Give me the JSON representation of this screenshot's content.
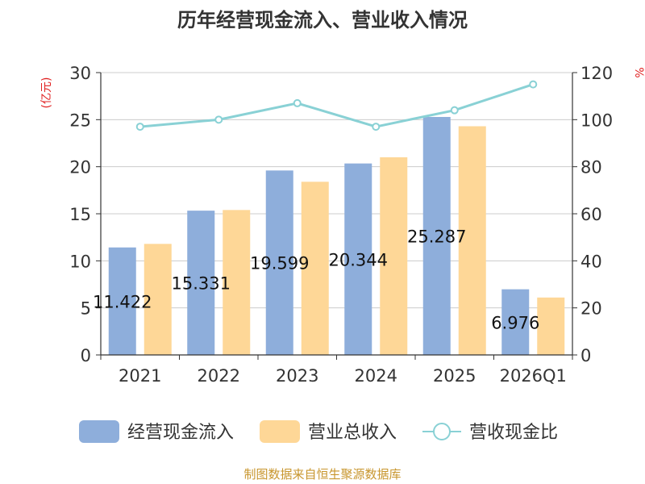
{
  "chart_data": {
    "type": "bar",
    "title": "历年经营现金流入、营业收入情况",
    "y_left_label": "(亿元)",
    "y_right_label": "%",
    "categories": [
      "2021",
      "2022",
      "2023",
      "2024",
      "2025",
      "2026Q1"
    ],
    "y_left_ticks": [
      0,
      5,
      10,
      15,
      20,
      25,
      30
    ],
    "y_right_ticks": [
      0,
      20,
      40,
      60,
      80,
      100,
      120
    ],
    "ylim_left": [
      0,
      30
    ],
    "ylim_right": [
      0,
      120
    ],
    "series": [
      {
        "name": "经营现金流入",
        "type": "bar",
        "axis": "left",
        "color": "#8eaedb",
        "values": [
          11.422,
          15.331,
          19.599,
          20.344,
          25.287,
          6.976
        ],
        "labels": [
          "11.422",
          "15.331",
          "19.599",
          "20.344",
          "25.287",
          "6.976"
        ]
      },
      {
        "name": "营业总收入",
        "type": "bar",
        "axis": "left",
        "color": "#fed797",
        "values": [
          11.8,
          15.4,
          18.4,
          21.0,
          24.3,
          6.1
        ]
      },
      {
        "name": "营收现金比",
        "type": "line",
        "axis": "right",
        "color": "#89d1d5",
        "values": [
          97,
          100,
          107,
          97,
          104,
          115
        ]
      }
    ],
    "legend_position": "bottom",
    "grid": true
  },
  "footer": {
    "source": "制图数据来自恒生聚源数据库"
  }
}
